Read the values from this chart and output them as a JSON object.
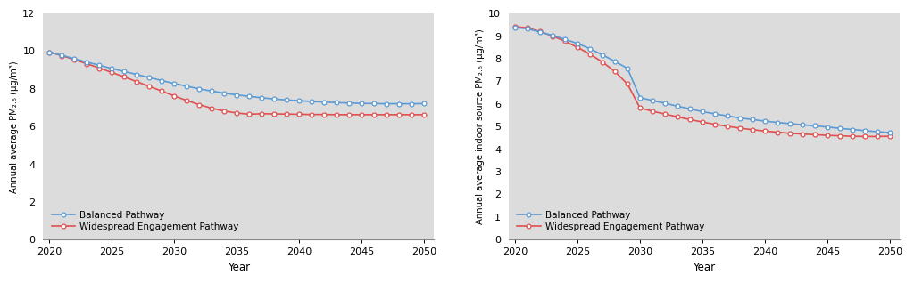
{
  "years": [
    2020,
    2021,
    2022,
    2023,
    2024,
    2025,
    2026,
    2027,
    2028,
    2029,
    2030,
    2031,
    2032,
    2033,
    2034,
    2035,
    2036,
    2037,
    2038,
    2039,
    2040,
    2041,
    2042,
    2043,
    2044,
    2045,
    2046,
    2047,
    2048,
    2049,
    2050
  ],
  "left_balanced": [
    9.95,
    9.78,
    9.6,
    9.42,
    9.25,
    9.08,
    8.92,
    8.76,
    8.6,
    8.44,
    8.28,
    8.14,
    8.0,
    7.88,
    7.77,
    7.68,
    7.6,
    7.53,
    7.46,
    7.41,
    7.37,
    7.33,
    7.3,
    7.27,
    7.25,
    7.23,
    7.22,
    7.21,
    7.21,
    7.21,
    7.22
  ],
  "left_widespread": [
    9.95,
    9.76,
    9.55,
    9.33,
    9.1,
    8.87,
    8.63,
    8.38,
    8.13,
    7.88,
    7.62,
    7.38,
    7.16,
    6.97,
    6.82,
    6.72,
    6.65,
    6.68,
    6.67,
    6.66,
    6.65,
    6.64,
    6.64,
    6.63,
    6.63,
    6.63,
    6.63,
    6.63,
    6.63,
    6.63,
    6.63
  ],
  "right_balanced": [
    9.38,
    9.32,
    9.18,
    9.03,
    8.86,
    8.67,
    8.44,
    8.17,
    7.88,
    7.57,
    6.28,
    6.15,
    6.03,
    5.9,
    5.78,
    5.66,
    5.56,
    5.47,
    5.38,
    5.31,
    5.24,
    5.18,
    5.13,
    5.08,
    5.03,
    4.98,
    4.92,
    4.87,
    4.82,
    4.77,
    4.73
  ],
  "right_widespread": [
    9.42,
    9.36,
    9.2,
    9.0,
    8.77,
    8.5,
    8.2,
    7.85,
    7.43,
    6.88,
    5.82,
    5.68,
    5.55,
    5.43,
    5.31,
    5.2,
    5.1,
    5.01,
    4.93,
    4.86,
    4.8,
    4.75,
    4.7,
    4.67,
    4.64,
    4.61,
    4.59,
    4.57,
    4.56,
    4.56,
    4.57
  ],
  "blue_color": "#5B9BD5",
  "red_color": "#E05050",
  "plot_bg_color": "#DCDCDC",
  "fig_bg_color": "#FFFFFF",
  "left_ylabel": "Annual average PM₂.₅ (μg/m³)",
  "right_ylabel": "Annual average indoor source PM₂.₅ (μg/m³)",
  "xlabel": "Year",
  "left_ylim": [
    0,
    12
  ],
  "right_ylim": [
    0,
    10
  ],
  "left_yticks": [
    0,
    2,
    4,
    6,
    8,
    10,
    12
  ],
  "right_yticks": [
    0,
    1,
    2,
    3,
    4,
    5,
    6,
    7,
    8,
    9,
    10
  ],
  "xticks": [
    2020,
    2025,
    2030,
    2035,
    2040,
    2045,
    2050
  ],
  "legend_balanced": "Balanced Pathway",
  "legend_widespread": "Widespread Engagement Pathway",
  "marker": "o",
  "marker_size": 3.5,
  "linewidth": 1.2,
  "marker_facecolor": "white",
  "marker_edge_width": 0.9
}
